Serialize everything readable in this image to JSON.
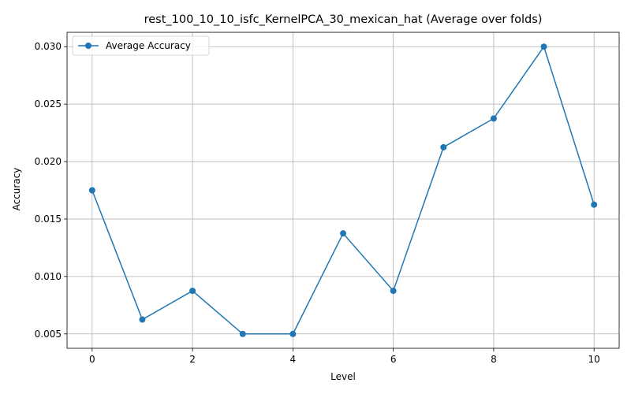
{
  "chart_data": {
    "type": "line",
    "title": "rest_100_10_10_isfc_KernelPCA_30_mexican_hat (Average over folds)",
    "xlabel": "Level",
    "ylabel": "Accuracy",
    "xlim": [
      -0.5,
      10.5
    ],
    "ylim": [
      0.00375,
      0.03125
    ],
    "xticks": [
      0,
      2,
      4,
      6,
      8,
      10
    ],
    "xtick_labels": [
      "0",
      "2",
      "4",
      "6",
      "8",
      "10"
    ],
    "yticks": [
      0.005,
      0.01,
      0.015,
      0.02,
      0.025,
      0.03
    ],
    "ytick_labels": [
      "0.005",
      "0.010",
      "0.015",
      "0.020",
      "0.025",
      "0.030"
    ],
    "grid": true,
    "legend_position": "upper-left",
    "series": [
      {
        "name": "Average Accuracy",
        "color": "#1f77b4",
        "marker": "circle",
        "x": [
          0,
          1,
          2,
          3,
          4,
          5,
          6,
          7,
          8,
          9,
          10
        ],
        "values": [
          0.0175,
          0.00625,
          0.00875,
          0.005,
          0.005,
          0.01375,
          0.00875,
          0.02125,
          0.02375,
          0.03,
          0.01625
        ]
      }
    ]
  }
}
